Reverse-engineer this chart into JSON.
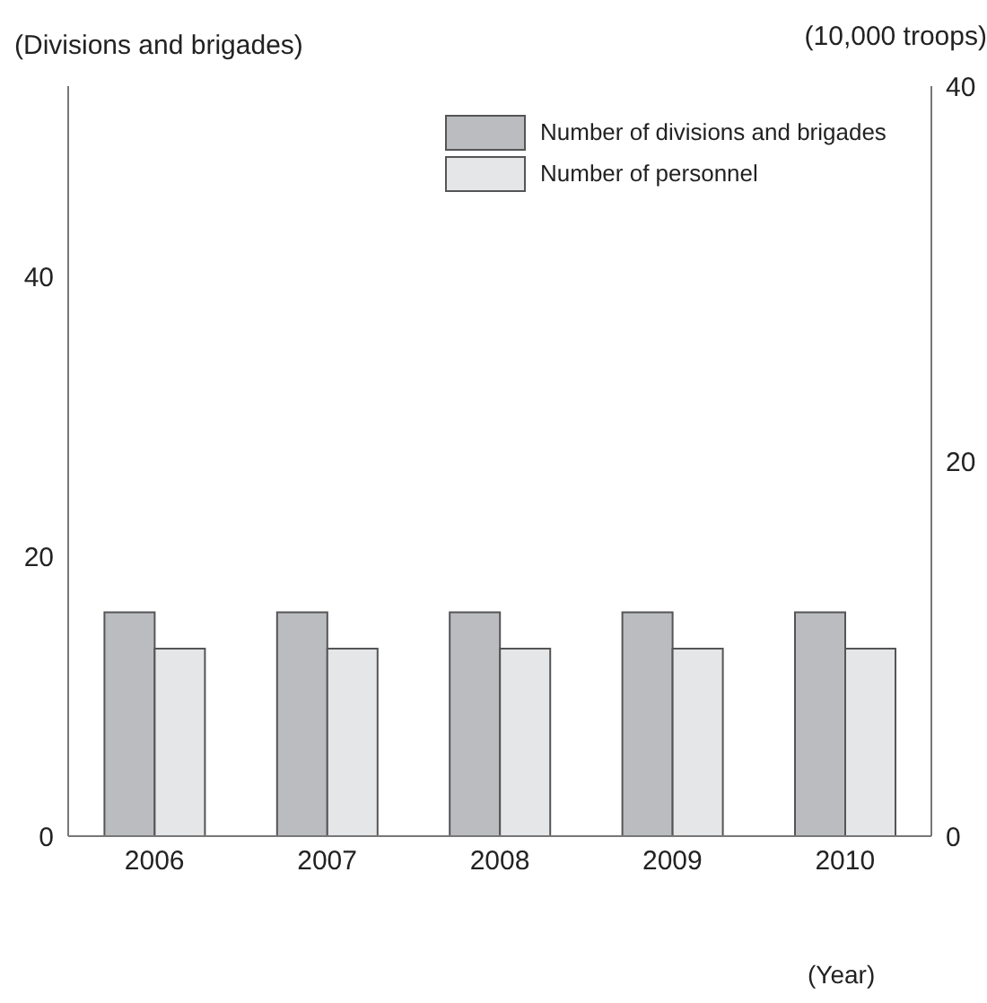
{
  "chart_data": {
    "type": "bar",
    "categories": [
      "2006",
      "2007",
      "2008",
      "2009",
      "2010"
    ],
    "ylabel": "(Divisions and brigades)",
    "y2label": "(10,000 troops)",
    "xlabel": "(Year)",
    "series": [
      {
        "name": "Number of divisions and brigades",
        "color": "#bbbcc0",
        "values": [
          16,
          16,
          16,
          16,
          16
        ]
      },
      {
        "name": "Number of personnel",
        "color": "#e5e6e8",
        "values": [
          10,
          10,
          10,
          10,
          10
        ],
        "axis": "y2"
      }
    ],
    "ylim": [
      0,
      53.6
    ],
    "yticks": [
      0,
      20,
      40
    ],
    "y2lim": [
      0,
      40
    ],
    "y2ticks": [
      0,
      20,
      40
    ],
    "grid": false,
    "legend": "top right"
  }
}
